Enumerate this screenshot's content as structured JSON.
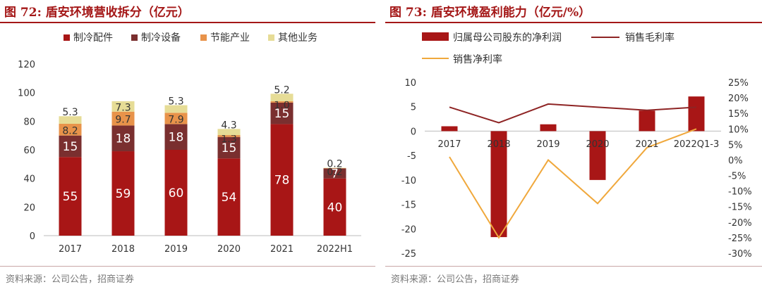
{
  "left": {
    "title": "图 72:  盾安环境营收拆分（亿元）",
    "source": "资料来源：公司公告，招商证券",
    "colors": {
      "s1": "#a81616",
      "s2": "#7a2f2f",
      "s3": "#e8934a",
      "s4": "#e6dc96"
    }
  },
  "right": {
    "title": "图 73:  盾安环境盈利能力（亿元/%）",
    "source": "资料来源：公司公告，招商证券",
    "colors": {
      "bar": "#a81616",
      "gross": "#8e2424",
      "net": "#f0a83c"
    }
  },
  "chart_data": [
    {
      "type": "bar",
      "stacked": true,
      "title": "盾安环境营收拆分（亿元）",
      "categories": [
        "2017",
        "2018",
        "2019",
        "2020",
        "2021",
        "2022H1"
      ],
      "series": [
        {
          "name": "制冷配件",
          "values": [
            55,
            59,
            60,
            54,
            78,
            40
          ]
        },
        {
          "name": "制冷设备",
          "values": [
            15,
            18,
            18,
            15,
            15,
            7
          ]
        },
        {
          "name": "节能产业",
          "values": [
            8.2,
            9.7,
            7.9,
            1.3,
            1.0,
            0.2
          ]
        },
        {
          "name": "其他业务",
          "values": [
            5.3,
            7.3,
            5.3,
            4.3,
            5.2,
            0.2
          ]
        }
      ],
      "data_labels": [
        [
          "55",
          "59",
          "60",
          "54",
          "78",
          "40"
        ],
        [
          "15",
          "18",
          "18",
          "15",
          "15",
          "7"
        ],
        [
          "8.2",
          "9.7",
          "7.9",
          "1.3",
          "1.0",
          "0.2"
        ],
        [
          "5.3",
          "7.3",
          "5.3",
          "4.3",
          "5.2",
          "0.2"
        ]
      ],
      "ylim": [
        0,
        120
      ],
      "yticks": [
        "0",
        "20",
        "40",
        "60",
        "80",
        "100",
        "120"
      ],
      "legend": "top"
    },
    {
      "type": "bar+line",
      "title": "盾安环境盈利能力（亿元/%）",
      "categories": [
        "2017",
        "2018",
        "2019",
        "2020",
        "2021",
        "2022Q1-3"
      ],
      "bar_series": {
        "name": "归属母公司股东的净利润",
        "values": [
          1.0,
          -21.7,
          1.4,
          -10.0,
          4.2,
          7.1
        ]
      },
      "line_series": [
        {
          "name": "销售毛利率",
          "values": [
            17,
            12,
            18,
            17,
            16,
            17
          ]
        },
        {
          "name": "销售净利率",
          "values": [
            1,
            -25,
            0,
            -14,
            4,
            10
          ]
        }
      ],
      "ylim_left": [
        -25,
        10
      ],
      "yticks_left": [
        "-25",
        "-20",
        "-15",
        "-10",
        "-5",
        "0",
        "5",
        "10"
      ],
      "ylim_right": [
        -30,
        25
      ],
      "yticks_right": [
        "-30%",
        "-25%",
        "-20%",
        "-15%",
        "-10%",
        "-5%",
        "0%",
        "5%",
        "10%",
        "15%",
        "20%",
        "25%"
      ],
      "legend": "top"
    }
  ]
}
